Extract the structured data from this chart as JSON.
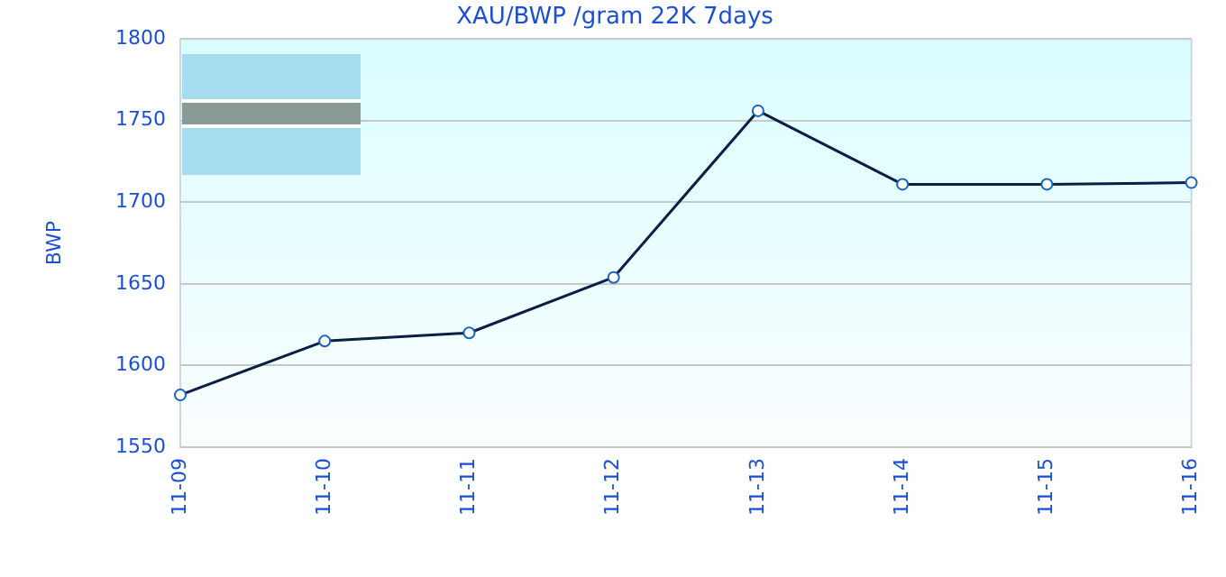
{
  "chart_data": {
    "type": "line",
    "title": "XAU/BWP /gram 22K 7days",
    "ylabel": "BWP",
    "categories": [
      "11-09",
      "11-10",
      "11-11",
      "11-12",
      "11-13",
      "11-14",
      "11-15",
      "11-16"
    ],
    "series": [
      {
        "color": "#0a1f44",
        "values": [
          1582,
          1615,
          1620,
          1654,
          1756,
          1711,
          1711,
          1712
        ]
      }
    ],
    "ylim": [
      1550,
      1800
    ],
    "yticks": [
      1550,
      1600,
      1650,
      1700,
      1750,
      1800
    ],
    "grid": "y",
    "marker": "circle",
    "line_style": "solid"
  }
}
